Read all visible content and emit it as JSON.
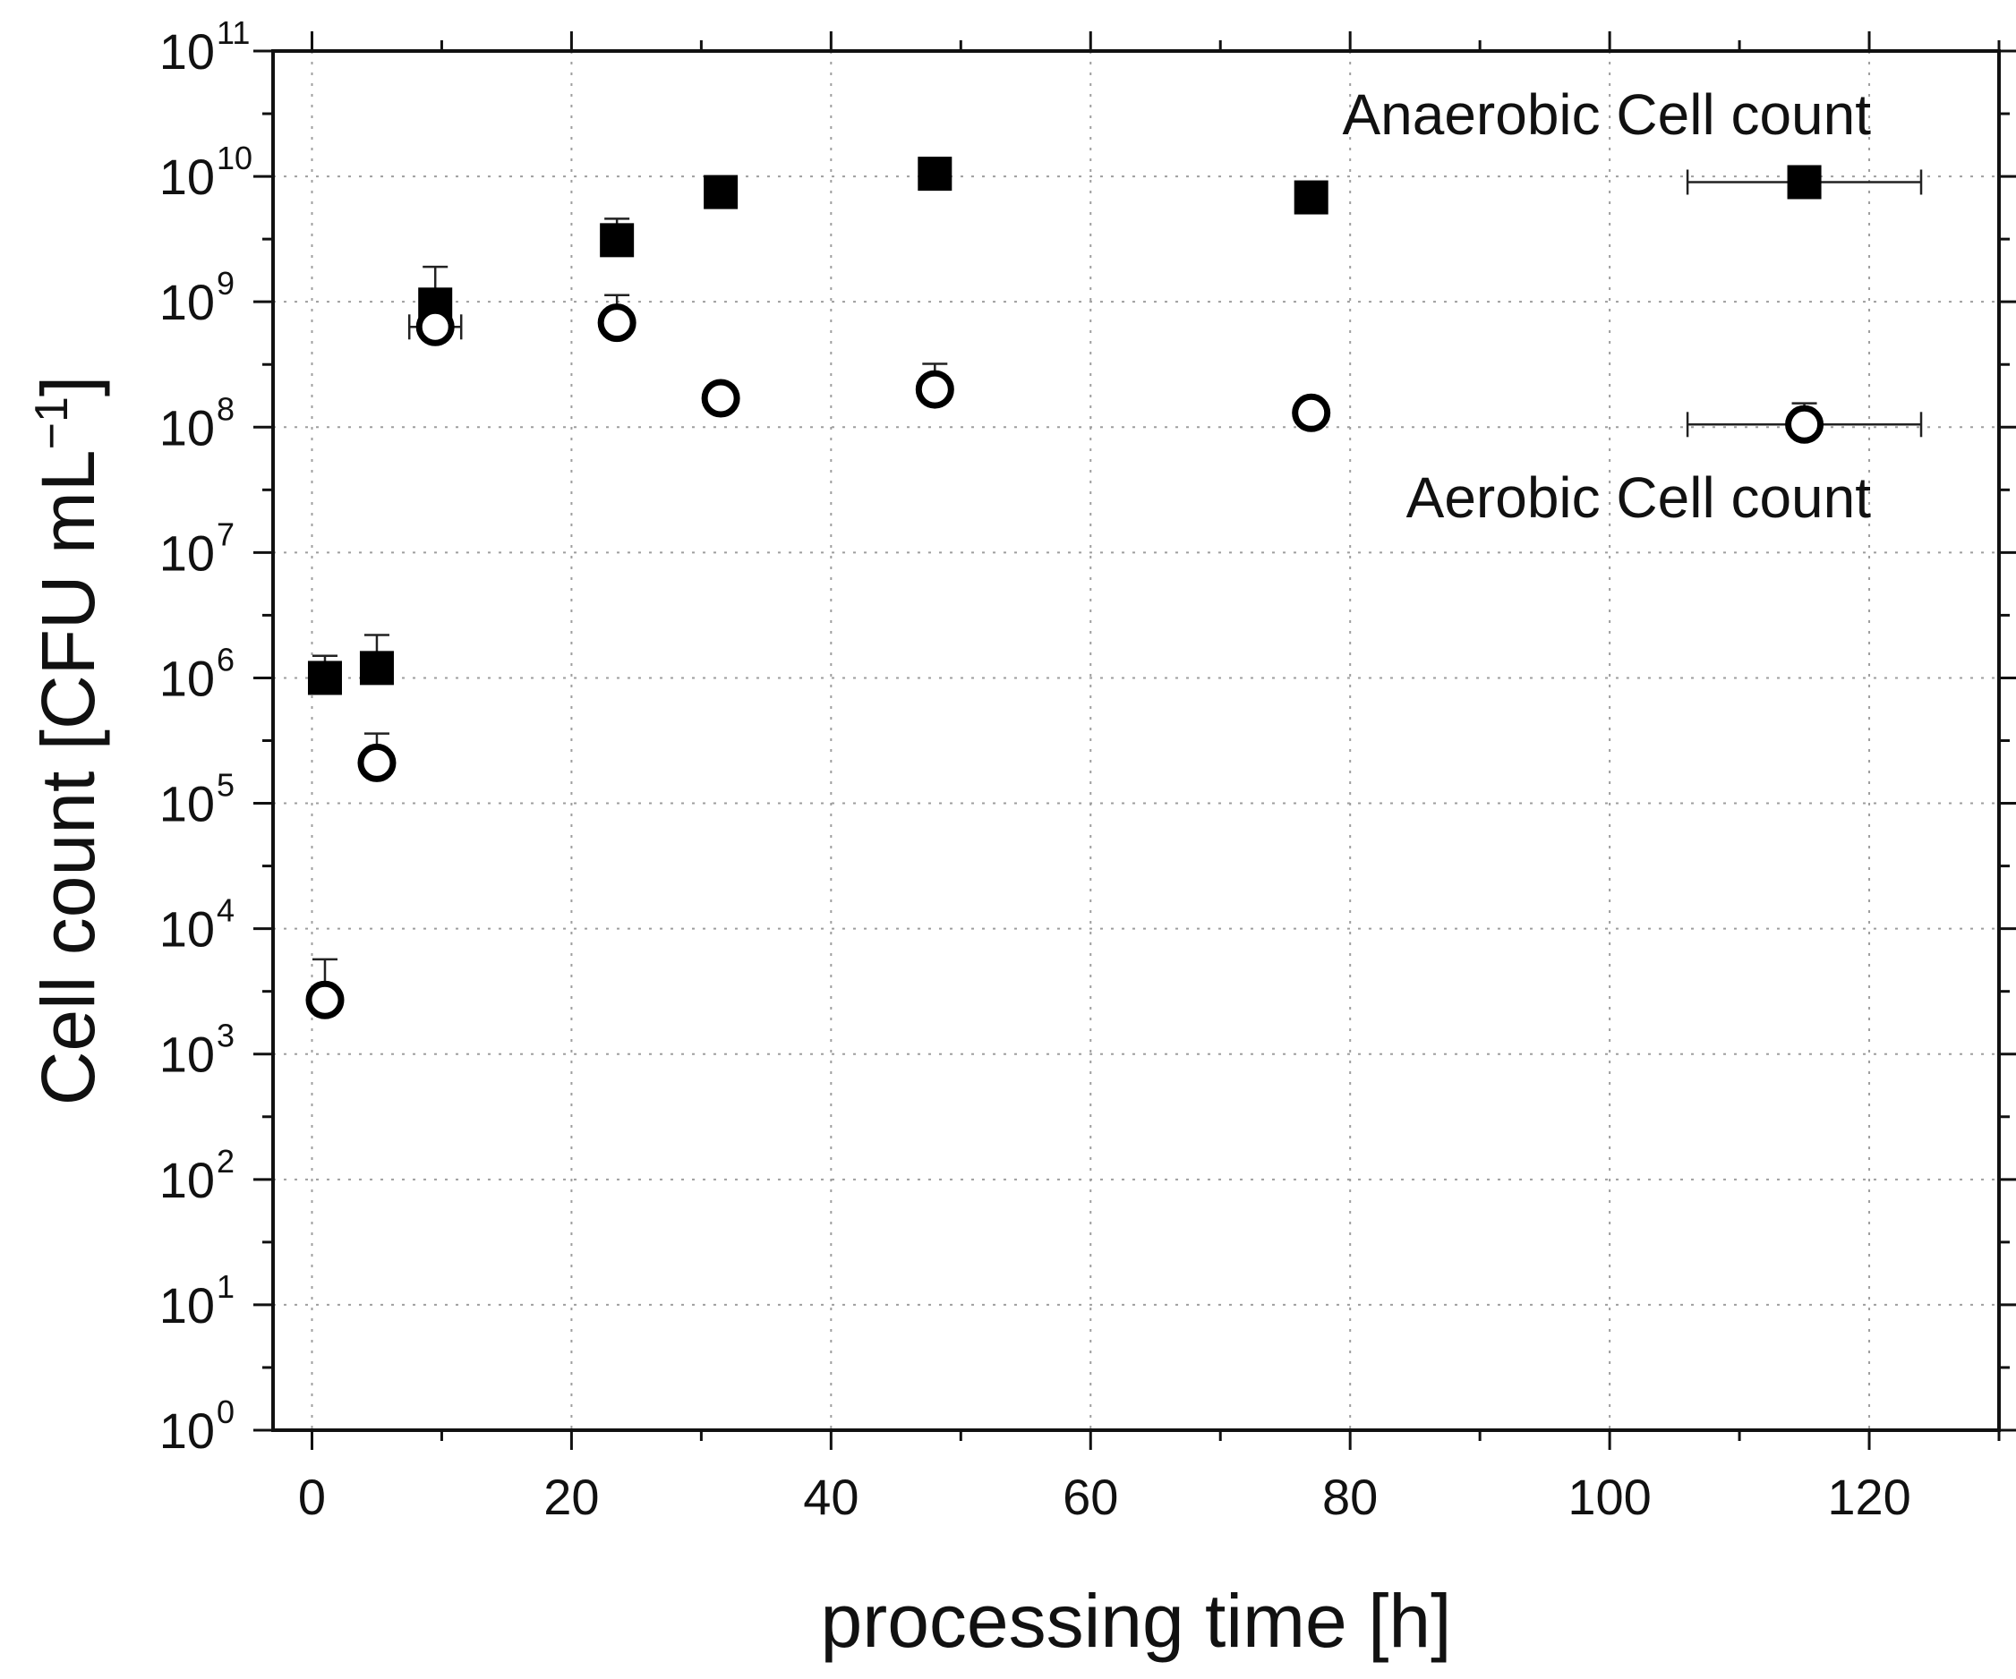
{
  "chart_data": {
    "type": "scatter",
    "title": "",
    "xlabel": "processing time [h]",
    "ylabel": {
      "base": "Cell count [CFU mL",
      "superscript": "−1",
      "close": "]"
    },
    "x_axis": {
      "min": -3,
      "max": 130,
      "major_ticks": [
        0,
        20,
        40,
        60,
        80,
        100,
        120
      ],
      "minor_ticks": [
        10,
        30,
        50,
        70,
        90,
        110,
        130
      ],
      "tick_labels": [
        "0",
        "20",
        "40",
        "60",
        "80",
        "100",
        "120"
      ],
      "scale": "linear"
    },
    "y_axis": {
      "min_exponent": 0,
      "max_exponent": 11,
      "scale": "log10",
      "tick_labels": [
        {
          "base": "10",
          "exp": "0"
        },
        {
          "base": "10",
          "exp": "1"
        },
        {
          "base": "10",
          "exp": "2"
        },
        {
          "base": "10",
          "exp": "3"
        },
        {
          "base": "10",
          "exp": "4"
        },
        {
          "base": "10",
          "exp": "5"
        },
        {
          "base": "10",
          "exp": "6"
        },
        {
          "base": "10",
          "exp": "7"
        },
        {
          "base": "10",
          "exp": "8"
        },
        {
          "base": "10",
          "exp": "9"
        },
        {
          "base": "10",
          "exp": "10"
        },
        {
          "base": "10",
          "exp": "11"
        }
      ]
    },
    "grid": true,
    "series": [
      {
        "name": "Anaerobic Cell count",
        "marker": "filled-square",
        "label_text": "Anaerobic Cell count",
        "label_placement": "top-right",
        "points": [
          {
            "x": 1,
            "y": 1000000.0,
            "yerr_plus": 500000.0,
            "xerr": 0
          },
          {
            "x": 5,
            "y": 1200000.0,
            "yerr_plus": 1000000.0,
            "xerr": 0
          },
          {
            "x": 9.5,
            "y": 950000000.0,
            "yerr_plus": 950000000.0,
            "xerr": 0
          },
          {
            "x": 23.5,
            "y": 3100000000.0,
            "yerr_plus": 1500000000.0,
            "xerr": 0
          },
          {
            "x": 31.5,
            "y": 7500000000.0,
            "yerr_plus": 0,
            "xerr": 0
          },
          {
            "x": 48,
            "y": 10500000000.0,
            "yerr_plus": 0,
            "xerr": 0
          },
          {
            "x": 77,
            "y": 6800000000.0,
            "yerr_plus": 0,
            "xerr": 0
          },
          {
            "x": 115,
            "y": 9000000000.0,
            "yerr_plus": 0,
            "xerr": 9
          }
        ]
      },
      {
        "name": "Aerobic Cell count",
        "marker": "open-circle",
        "label_text": "Aerobic Cell count",
        "label_placement": "right, below anaerobic",
        "points": [
          {
            "x": 1,
            "y": 2700.0,
            "yerr_plus": 3000.0,
            "xerr": 0
          },
          {
            "x": 5,
            "y": 210000.0,
            "yerr_plus": 150000.0,
            "xerr": 0
          },
          {
            "x": 9.5,
            "y": 630000000.0,
            "yerr_plus": 0,
            "xerr": 2
          },
          {
            "x": 23.5,
            "y": 680000000.0,
            "yerr_plus": 450000000.0,
            "xerr": 0
          },
          {
            "x": 31.5,
            "y": 170000000.0,
            "yerr_plus": 0,
            "xerr": 0
          },
          {
            "x": 48,
            "y": 200000000.0,
            "yerr_plus": 120000000.0,
            "xerr": 0
          },
          {
            "x": 77,
            "y": 130000000.0,
            "yerr_plus": 0,
            "xerr": 0
          },
          {
            "x": 115,
            "y": 105000000.0,
            "yerr_plus": 50000000.0,
            "xerr": 9
          }
        ]
      }
    ]
  }
}
